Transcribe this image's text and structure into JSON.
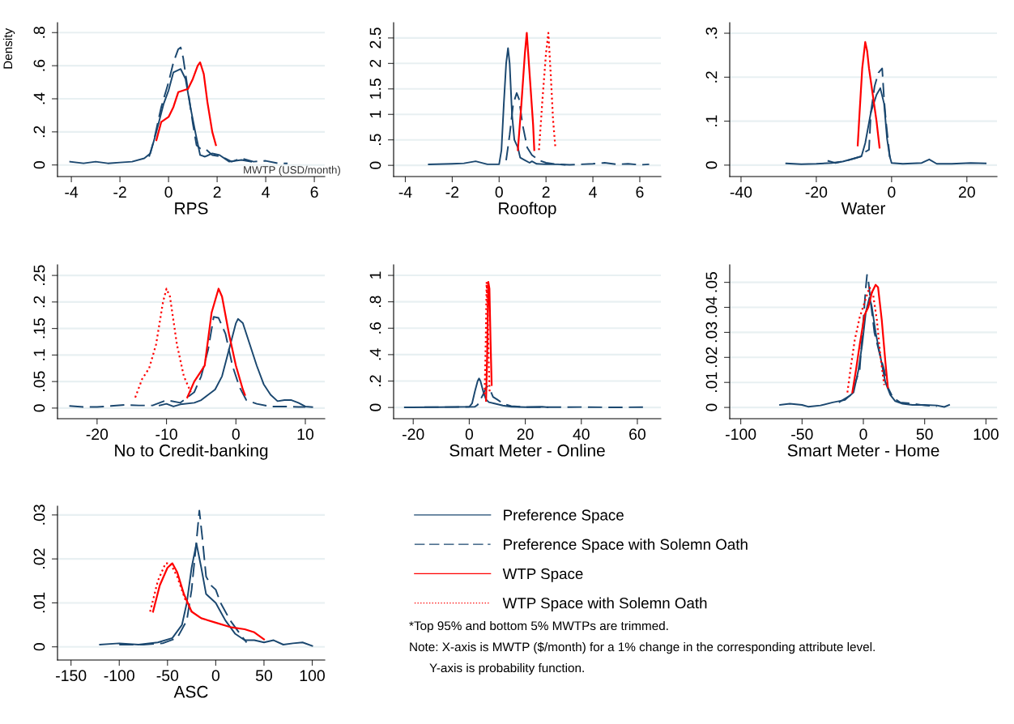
{
  "chart_data": [
    {
      "type": "line",
      "xlabel": "RPS",
      "ylabel": "Density",
      "xlim": [
        -4.57,
        6.43
      ],
      "ylim": [
        -0.07,
        0.86
      ],
      "xticks": [
        -4,
        -2,
        0,
        2,
        4,
        6
      ],
      "yticks": [
        0,
        {
          "value": 0.2,
          "label": ".2"
        },
        {
          "value": 0.4,
          "label": ".4"
        },
        {
          "value": 0.6,
          "label": ".6"
        },
        {
          "value": 0.8,
          "label": ".8"
        }
      ],
      "grid": "y",
      "annotations": [
        "MWTP (USD/month)"
      ],
      "series": [
        {
          "color": "#1a476f",
          "line_style": "solid",
          "x": [
            -4.05,
            -3.5,
            -3,
            -2.5,
            -2,
            -1.5,
            -1,
            -0.75,
            -0.5,
            -0.2,
            0,
            0.2,
            0.5,
            0.7,
            0.9,
            1.1,
            1.3,
            1.5,
            1.8,
            2.1,
            2.5,
            3,
            3.4
          ],
          "values": [
            0.02,
            0.01,
            0.02,
            0.01,
            0.015,
            0.02,
            0.04,
            0.07,
            0.2,
            0.37,
            0.45,
            0.56,
            0.58,
            0.52,
            0.35,
            0.2,
            0.06,
            0.05,
            0.07,
            0.06,
            0.02,
            0.03,
            0.02
          ]
        },
        {
          "color": "#1a476f",
          "line_style": "dashed",
          "x": [
            -0.8,
            -0.6,
            -0.3,
            0,
            0.2,
            0.4,
            0.5,
            0.6,
            0.8,
            1,
            1.15,
            1.3,
            1.5,
            1.8,
            2.2,
            2.6,
            3,
            3.5,
            4,
            4.5,
            4.9
          ],
          "values": [
            0.05,
            0.15,
            0.35,
            0.5,
            0.62,
            0.7,
            0.71,
            0.65,
            0.45,
            0.25,
            0.12,
            0.1,
            0.1,
            0.06,
            0.05,
            0.02,
            0.04,
            0.02,
            0.025,
            0.01,
            0.01
          ]
        },
        {
          "color": "#ff0000",
          "line_style": "solid",
          "x": [
            -0.5,
            -0.3,
            0,
            0.2,
            0.4,
            0.6,
            0.8,
            1,
            1.2,
            1.3,
            1.45,
            1.6,
            1.8,
            1.95
          ],
          "values": [
            0.15,
            0.26,
            0.29,
            0.35,
            0.44,
            0.45,
            0.46,
            0.52,
            0.6,
            0.62,
            0.55,
            0.38,
            0.2,
            0.12
          ]
        }
      ]
    },
    {
      "type": "line",
      "xlabel": "Rooftop",
      "xlim": [
        -4.5,
        6.9
      ],
      "ylim": [
        -0.22,
        2.8
      ],
      "xticks": [
        -4,
        -2,
        0,
        2,
        4,
        6
      ],
      "yticks": [
        0,
        {
          "value": 0.5,
          "label": ".5"
        },
        1,
        1.5,
        2,
        2.5
      ],
      "grid": "y",
      "series": [
        {
          "color": "#1a476f",
          "line_style": "solid",
          "x": [
            -3,
            -2,
            -1.5,
            -1,
            -0.5,
            0,
            0.1,
            0.2,
            0.3,
            0.38,
            0.45,
            0.55,
            0.65,
            0.8,
            0.9,
            1.1,
            1.3,
            1.4,
            1.6,
            2,
            2.5,
            2.8
          ],
          "values": [
            0.02,
            0.03,
            0.04,
            0.08,
            0.02,
            0.02,
            0.3,
            1.2,
            2.0,
            2.3,
            2.0,
            1.0,
            0.5,
            0.35,
            0.15,
            0.1,
            0.05,
            0.08,
            0.03,
            0.02,
            0.02,
            0.01
          ]
        },
        {
          "color": "#1a476f",
          "line_style": "dashed",
          "x": [
            0.3,
            0.45,
            0.6,
            0.75,
            0.85,
            1,
            1.2,
            1.4,
            1.7,
            2,
            2.5,
            3,
            3.5,
            4,
            4.5,
            5,
            5.5,
            6,
            6.4
          ],
          "values": [
            0.1,
            0.6,
            1.2,
            1.42,
            1.3,
            0.8,
            0.35,
            0.2,
            0.1,
            0.05,
            0.02,
            0.01,
            0.02,
            0.03,
            0.05,
            0.02,
            0.03,
            0.01,
            0.02
          ]
        },
        {
          "color": "#ff0000",
          "line_style": "solid",
          "x": [
            0.8,
            0.95,
            1.1,
            1.18,
            1.3,
            1.45,
            1.5
          ],
          "values": [
            0.3,
            1.2,
            2.2,
            2.6,
            1.8,
            0.8,
            0.3
          ]
        },
        {
          "color": "#ff0000",
          "line_style": "dotted",
          "x": [
            1.7,
            1.85,
            2.0,
            2.1,
            2.2,
            2.3,
            2.4
          ],
          "values": [
            0.3,
            1.3,
            2.2,
            2.6,
            1.8,
            0.9,
            0.35
          ]
        }
      ]
    },
    {
      "type": "line",
      "xlabel": "Water",
      "xlim": [
        -43,
        28
      ],
      "ylim": [
        -0.026,
        0.324
      ],
      "xticks": [
        -40,
        -20,
        0,
        20
      ],
      "yticks": [
        0,
        {
          "value": 0.1,
          "label": ".1"
        },
        {
          "value": 0.2,
          "label": ".2"
        },
        {
          "value": 0.3,
          "label": ".3"
        }
      ],
      "grid": "y",
      "series": [
        {
          "color": "#1a476f",
          "line_style": "solid",
          "x": [
            -28,
            -24,
            -20,
            -16,
            -13,
            -10,
            -8,
            -7,
            -5.5,
            -4,
            -3,
            -2,
            -1.2,
            -0.5,
            0,
            3,
            8,
            10,
            12,
            16,
            21,
            25
          ],
          "values": [
            0.004,
            0.002,
            0.003,
            0.005,
            0.008,
            0.015,
            0.02,
            0.05,
            0.12,
            0.16,
            0.175,
            0.14,
            0.06,
            0.02,
            0.005,
            0.003,
            0.005,
            0.013,
            0.003,
            0.003,
            0.005,
            0.004
          ]
        },
        {
          "color": "#1a476f",
          "line_style": "dashed",
          "x": [
            -17,
            -15,
            -12,
            -10,
            -8,
            -7,
            -6,
            -5.5,
            -4.5,
            -3.5,
            -2.5,
            -2,
            -1.5,
            -1,
            -0.5,
            0
          ],
          "values": [
            0.01,
            0.005,
            0.01,
            0.015,
            0.02,
            0.03,
            0.035,
            0.12,
            0.18,
            0.21,
            0.22,
            0.15,
            0.1,
            0.06,
            0.02,
            0.005
          ]
        },
        {
          "color": "#ff0000",
          "line_style": "solid",
          "x": [
            -9,
            -8.5,
            -7.8,
            -7,
            -6.5,
            -6,
            -5,
            -4,
            -3.2
          ],
          "values": [
            0.045,
            0.12,
            0.22,
            0.28,
            0.26,
            0.22,
            0.16,
            0.1,
            0.04
          ]
        }
      ]
    },
    {
      "type": "line",
      "xlabel": "No to Credit-banking",
      "xlim": [
        -25.7,
        12.8
      ],
      "ylim": [
        -0.02,
        0.27
      ],
      "xticks": [
        -20,
        -10,
        0,
        10
      ],
      "yticks": [
        0,
        {
          "value": 0.05,
          "label": ".05"
        },
        {
          "value": 0.1,
          "label": ".1"
        },
        {
          "value": 0.15,
          "label": ".15"
        },
        {
          "value": 0.2,
          "label": ".2"
        },
        {
          "value": 0.25,
          "label": ".25"
        }
      ],
      "grid": "y",
      "series": [
        {
          "color": "#1a476f",
          "line_style": "solid",
          "x": [
            -11,
            -10,
            -9,
            -8,
            -6,
            -5,
            -4,
            -3,
            -2,
            -1,
            0,
            0.3,
            1,
            2,
            3,
            4,
            5,
            6,
            7,
            8,
            9,
            10,
            11
          ],
          "values": [
            0.005,
            0.008,
            0.003,
            0.007,
            0.01,
            0.015,
            0.025,
            0.035,
            0.06,
            0.11,
            0.16,
            0.168,
            0.16,
            0.12,
            0.08,
            0.045,
            0.025,
            0.013,
            0.015,
            0.015,
            0.01,
            0.003,
            0.002
          ]
        },
        {
          "color": "#1a476f",
          "line_style": "dashed",
          "x": [
            -24,
            -22,
            -20,
            -18,
            -16,
            -14,
            -12,
            -11,
            -10,
            -8,
            -7,
            -6,
            -5,
            -4,
            -3.2,
            -2.5,
            -1.5,
            -0.5,
            0.5,
            1.5,
            3,
            5,
            7,
            9,
            10
          ],
          "values": [
            0.004,
            0.002,
            0.002,
            0.004,
            0.006,
            0.005,
            0.005,
            0.01,
            0.015,
            0.01,
            0.02,
            0.03,
            0.06,
            0.11,
            0.172,
            0.17,
            0.14,
            0.08,
            0.04,
            0.015,
            0.008,
            0.003,
            0.003,
            0.002,
            0.002
          ]
        },
        {
          "color": "#ff0000",
          "line_style": "solid",
          "x": [
            -7,
            -6,
            -5,
            -4.5,
            -4,
            -3.5,
            -2.5,
            -2,
            -1,
            0,
            1,
            1.3
          ],
          "values": [
            0.02,
            0.05,
            0.07,
            0.08,
            0.13,
            0.18,
            0.225,
            0.21,
            0.14,
            0.08,
            0.035,
            0.025
          ]
        },
        {
          "color": "#ff0000",
          "line_style": "dotted",
          "x": [
            -14.5,
            -13.5,
            -12.5,
            -11.5,
            -10.5,
            -10,
            -9.5,
            -8.5,
            -7.5,
            -6.5
          ],
          "values": [
            0.02,
            0.055,
            0.075,
            0.12,
            0.2,
            0.225,
            0.21,
            0.12,
            0.06,
            0.03
          ]
        }
      ]
    },
    {
      "type": "line",
      "xlabel": "Smart Meter - Online",
      "xlim": [
        -27,
        68.4
      ],
      "ylim": [
        -0.085,
        1.08
      ],
      "xticks": [
        -20,
        0,
        20,
        40,
        60
      ],
      "yticks": [
        0,
        {
          "value": 0.2,
          "label": ".2"
        },
        {
          "value": 0.4,
          "label": ".4"
        },
        {
          "value": 0.6,
          "label": ".6"
        },
        {
          "value": 0.8,
          "label": ".8"
        },
        1
      ],
      "grid": "y",
      "series": [
        {
          "color": "#1a476f",
          "line_style": "solid",
          "x": [
            -23,
            -10,
            0,
            1,
            2,
            3,
            3.5,
            4,
            5,
            6,
            7,
            9,
            12,
            15,
            20,
            26,
            28
          ],
          "values": [
            0.001,
            0.002,
            0.005,
            0.03,
            0.12,
            0.2,
            0.22,
            0.2,
            0.12,
            0.06,
            0.04,
            0.03,
            0.015,
            0.005,
            0.002,
            0.005,
            0.001
          ]
        },
        {
          "color": "#1a476f",
          "line_style": "dashed",
          "x": [
            -16,
            -5,
            2,
            3,
            4,
            5,
            6,
            6.5,
            7.5,
            8.5,
            10,
            12,
            15,
            20,
            30,
            40,
            50,
            62
          ],
          "values": [
            0.003,
            0.003,
            0.005,
            0.02,
            0.06,
            0.1,
            0.15,
            0.16,
            0.13,
            0.08,
            0.06,
            0.03,
            0.01,
            0.003,
            0.002,
            0.003,
            0.001,
            0.002
          ]
        },
        {
          "color": "#ff0000",
          "line_style": "solid",
          "x": [
            6,
            6.4,
            6.8,
            7.2,
            7.6,
            8
          ],
          "values": [
            0.05,
            0.4,
            0.95,
            0.9,
            0.5,
            0.17
          ]
        },
        {
          "color": "#ff0000",
          "line_style": "dotted",
          "x": [
            5.5,
            5.9,
            6.2,
            6.6,
            7,
            7.3
          ],
          "values": [
            0.1,
            0.5,
            0.95,
            0.7,
            0.3,
            0.1
          ]
        }
      ]
    },
    {
      "type": "line",
      "xlabel": "Smart Meter - Home",
      "xlim": [
        -109,
        109
      ],
      "ylim": [
        -0.0045,
        0.057
      ],
      "xticks": [
        -100,
        -50,
        0,
        50,
        100
      ],
      "yticks": [
        0,
        {
          "value": 0.01,
          "label": ".01"
        },
        {
          "value": 0.02,
          "label": ".02"
        },
        {
          "value": 0.03,
          "label": ".03"
        },
        {
          "value": 0.04,
          "label": ".04"
        },
        {
          "value": 0.05,
          "label": ".05"
        }
      ],
      "grid": "y",
      "series": [
        {
          "color": "#1a476f",
          "line_style": "solid",
          "x": [
            -68,
            -60,
            -50,
            -45,
            -35,
            -25,
            -15,
            -8,
            -4,
            -1,
            2,
            5,
            7,
            10,
            14,
            18,
            22,
            26,
            32,
            40,
            50,
            60,
            66,
            70
          ],
          "values": [
            0.001,
            0.0015,
            0.001,
            0.0003,
            0.0008,
            0.002,
            0.003,
            0.006,
            0.015,
            0.025,
            0.038,
            0.044,
            0.04,
            0.03,
            0.02,
            0.01,
            0.005,
            0.0025,
            0.0015,
            0.001,
            0.001,
            0.0008,
            0.0002,
            0.001
          ]
        },
        {
          "color": "#1a476f",
          "line_style": "dashed",
          "x": [
            -20,
            -10,
            -3,
            0,
            2,
            3,
            4,
            6,
            9,
            13,
            17,
            20,
            24,
            30,
            40,
            50,
            60
          ],
          "values": [
            0.002,
            0.005,
            0.015,
            0.035,
            0.048,
            0.053,
            0.051,
            0.042,
            0.03,
            0.022,
            0.015,
            0.008,
            0.004,
            0.002,
            0.0015,
            0.0008,
            0.0005
          ]
        },
        {
          "color": "#ff0000",
          "line_style": "solid",
          "x": [
            -9,
            -6,
            -3,
            1,
            4,
            7,
            10,
            12,
            15,
            18,
            20
          ],
          "values": [
            0.006,
            0.015,
            0.025,
            0.037,
            0.04,
            0.046,
            0.049,
            0.048,
            0.035,
            0.018,
            0.008
          ]
        },
        {
          "color": "#ff0000",
          "line_style": "dotted",
          "x": [
            -13,
            -10,
            -7,
            -3,
            1,
            5,
            8,
            11,
            14,
            17
          ],
          "values": [
            0.006,
            0.017,
            0.027,
            0.036,
            0.042,
            0.048,
            0.045,
            0.035,
            0.02,
            0.009
          ]
        }
      ]
    },
    {
      "type": "line",
      "xlabel": "ASC",
      "xlim": [
        -164,
        113
      ],
      "ylim": [
        -0.003,
        0.032
      ],
      "xticks": [
        -150,
        -100,
        -50,
        0,
        50,
        100
      ],
      "yticks": [
        0,
        {
          "value": 0.01,
          "label": ".01"
        },
        {
          "value": 0.02,
          "label": ".02"
        },
        {
          "value": 0.03,
          "label": ".03"
        }
      ],
      "grid": "y",
      "legend": "right",
      "annotations": [
        "*Top 95% and bottom 5% MWTPs are trimmed.",
        "Note: X-axis is MWTP ($/month) for a 1% change in the corresponding attribute level.",
        "Y-axis is probability function."
      ],
      "series": [
        {
          "name": "Preference Space",
          "color": "#1a476f",
          "line_style": "solid",
          "x": [
            -120,
            -100,
            -80,
            -60,
            -45,
            -35,
            -30,
            -25,
            -20,
            -15,
            -10,
            -5,
            0,
            10,
            20,
            30,
            40,
            50,
            60,
            70,
            80,
            90,
            100
          ],
          "values": [
            0.0005,
            0.0008,
            0.0005,
            0.001,
            0.002,
            0.005,
            0.01,
            0.018,
            0.0235,
            0.018,
            0.012,
            0.011,
            0.01,
            0.006,
            0.003,
            0.0015,
            0.0015,
            0.001,
            0.0015,
            0.0005,
            0.0008,
            0.001,
            0.0002
          ]
        },
        {
          "name": "Preference Space with Solemn Oath",
          "color": "#1a476f",
          "line_style": "dashed",
          "x": [
            -100,
            -75,
            -55,
            -40,
            -30,
            -25,
            -20,
            -17,
            -14,
            -10,
            -5,
            0,
            5,
            15,
            25,
            32
          ],
          "values": [
            0.0005,
            0.0005,
            0.0008,
            0.002,
            0.006,
            0.013,
            0.024,
            0.031,
            0.025,
            0.016,
            0.014,
            0.013,
            0.01,
            0.006,
            0.003,
            0.001
          ]
        },
        {
          "name": "WTP Space",
          "color": "#ff0000",
          "line_style": "solid",
          "x": [
            -65,
            -58,
            -50,
            -45,
            -40,
            -33,
            -25,
            -15,
            0,
            15,
            30,
            40,
            50
          ],
          "values": [
            0.008,
            0.014,
            0.018,
            0.019,
            0.017,
            0.012,
            0.008,
            0.0065,
            0.0055,
            0.0045,
            0.004,
            0.0033,
            0.0017
          ]
        },
        {
          "name": "WTP Space with Solemn Oath",
          "color": "#ff0000",
          "line_style": "dotted",
          "x": [
            -68,
            -60,
            -52,
            -47,
            -40,
            -32,
            -25
          ],
          "values": [
            0.008,
            0.015,
            0.019,
            0.019,
            0.016,
            0.011,
            0.008
          ]
        }
      ]
    }
  ]
}
